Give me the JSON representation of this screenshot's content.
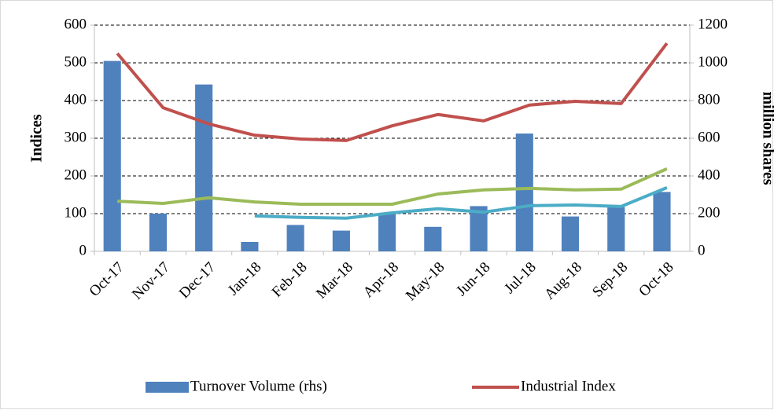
{
  "chart_data": {
    "type": "bar-line",
    "categories": [
      "Oct-17",
      "Nov-17",
      "Dec-17",
      "Jan-18",
      "Feb-18",
      "Mar-18",
      "Apr-18",
      "May-18",
      "Jun-18",
      "Jul-18",
      "Aug-18",
      "Sep-18",
      "Oct-18"
    ],
    "series": [
      {
        "name": "Turnover Volume (rhs)",
        "type": "bar",
        "axis": "y2",
        "color": "#4f81bd",
        "values": [
          1010,
          200,
          885,
          50,
          140,
          110,
          200,
          130,
          240,
          625,
          185,
          235,
          315
        ]
      },
      {
        "name": "Industrial Index",
        "type": "line",
        "color": "#c0504d",
        "values": [
          525,
          381,
          338,
          308,
          298,
          294,
          333,
          363,
          346,
          388,
          398,
          392,
          552
        ]
      },
      {
        "type": "line",
        "color": "#9bbb59",
        "values": [
          133,
          127,
          142,
          131,
          125,
          125,
          125,
          152,
          163,
          167,
          163,
          165,
          219
        ]
      },
      {
        "type": "line",
        "color": "#4bacc6",
        "values": [
          null,
          null,
          null,
          94,
          90,
          88,
          102,
          113,
          104,
          121,
          123,
          119,
          169
        ]
      }
    ],
    "ylabel": "Indices",
    "y2label": "million shares",
    "ylim": [
      0,
      600
    ],
    "yticks": [
      0,
      100,
      200,
      300,
      400,
      500,
      600
    ],
    "y2lim": [
      0,
      1200
    ],
    "y2ticks": [
      0,
      200,
      400,
      600,
      800,
      1000,
      1200
    ],
    "grid": true,
    "legend": "bottom"
  }
}
